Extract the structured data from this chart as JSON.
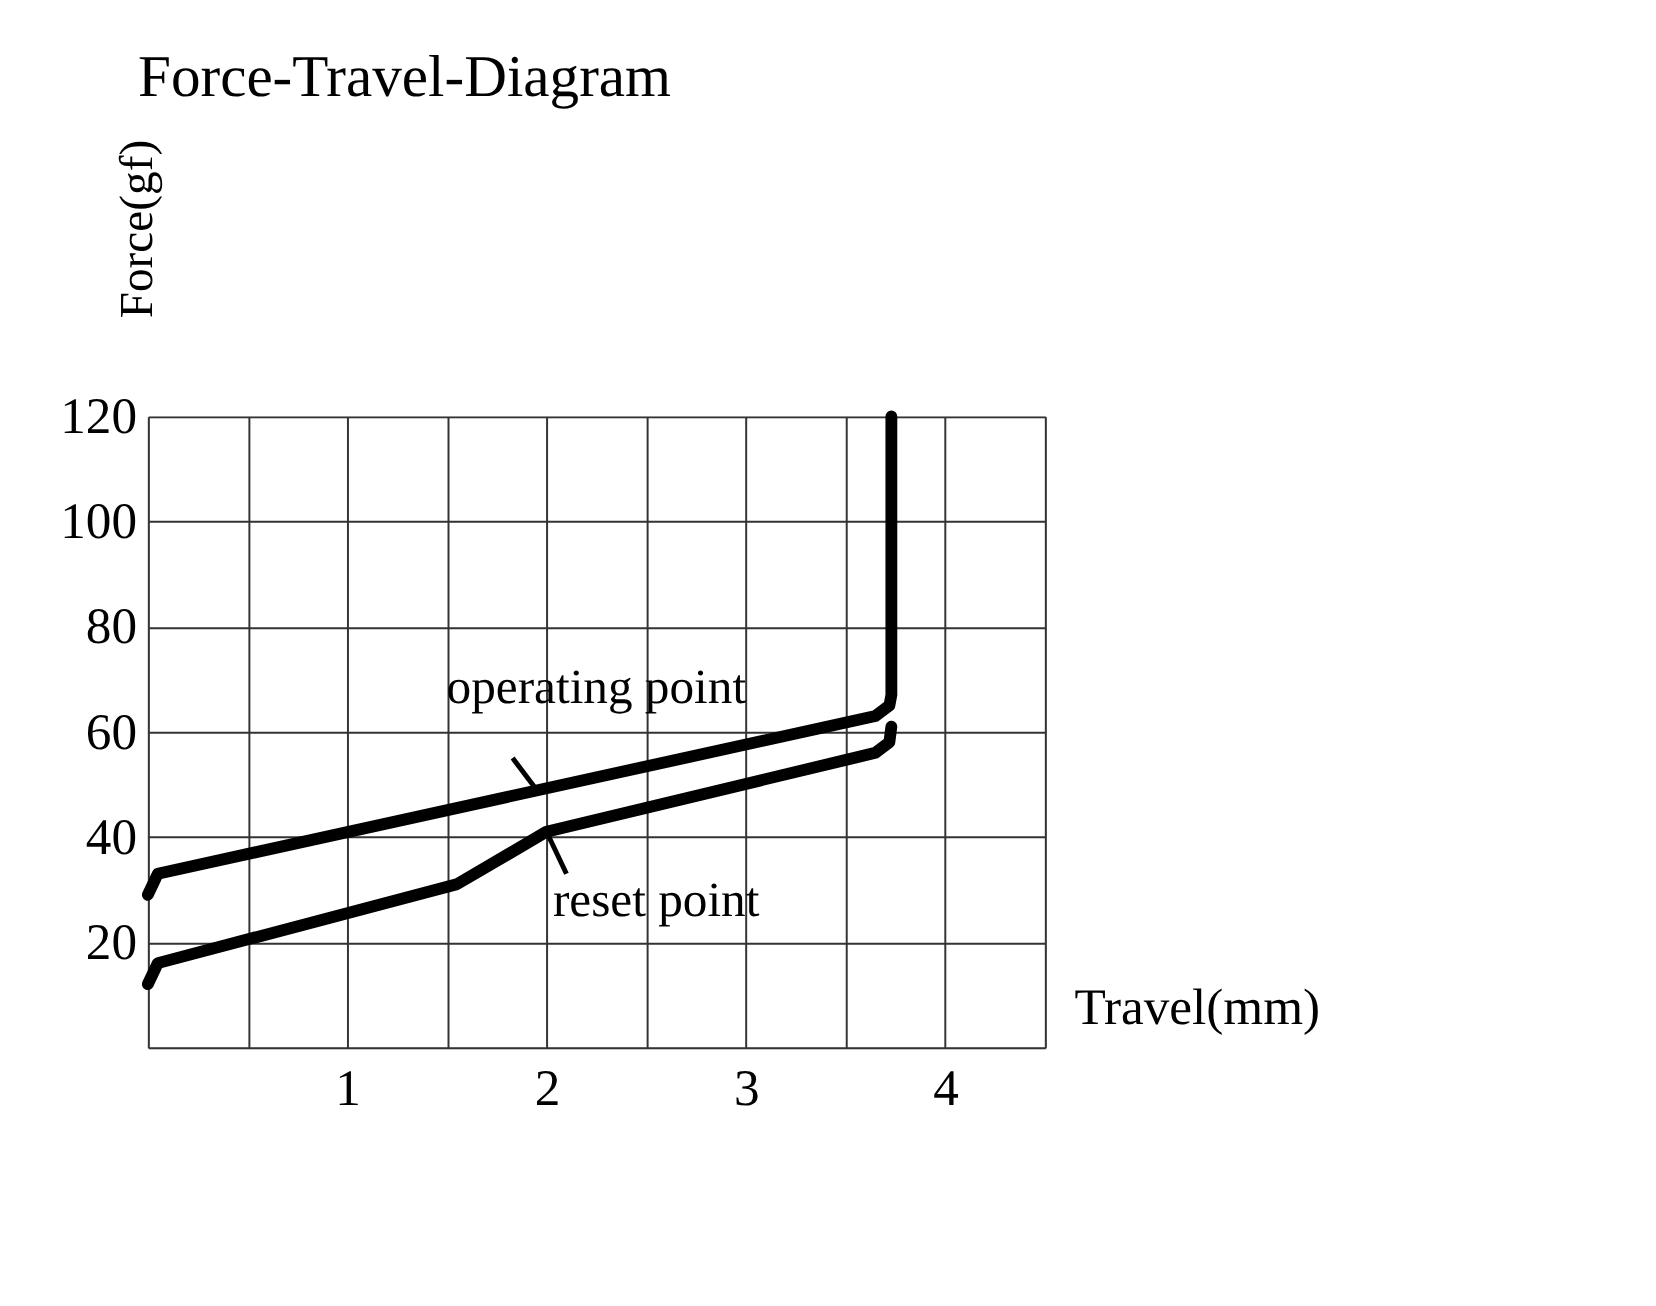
{
  "chart_data": {
    "type": "line",
    "title": "Force-Travel-Diagram",
    "xlabel": "Travel(mm)",
    "ylabel": "Force(gf)",
    "xlim": [
      0,
      4.5
    ],
    "ylim": [
      0,
      120
    ],
    "xticks": [
      {
        "value": 0,
        "label": null
      },
      {
        "value": 0.5,
        "label": null
      },
      1,
      {
        "value": 1.5,
        "label": null
      },
      2,
      {
        "value": 2.5,
        "label": null
      },
      3,
      {
        "value": 3.5,
        "label": null
      },
      4,
      {
        "value": 4.5,
        "label": null
      }
    ],
    "yticks": [
      {
        "value": 0,
        "label": null
      },
      20,
      40,
      60,
      80,
      100,
      120
    ],
    "grid": true,
    "marker": "none",
    "line_style": "solid",
    "series": [
      {
        "color": "#000000",
        "x": [
          0,
          0.05,
          3.65,
          3.72,
          3.73,
          3.73
        ],
        "values": [
          29,
          33,
          63,
          65,
          67,
          120
        ]
      },
      {
        "color": "#000000",
        "x": [
          0,
          0.05,
          1.55,
          2.0,
          3.65,
          3.72,
          3.73
        ],
        "values": [
          12,
          16,
          31,
          41,
          56,
          58,
          61
        ]
      }
    ],
    "annotations": [
      {
        "text": "operating point",
        "x": 1.95,
        "y": 49
      },
      {
        "text": "reset point",
        "x": 2.0,
        "y": 41
      }
    ]
  }
}
